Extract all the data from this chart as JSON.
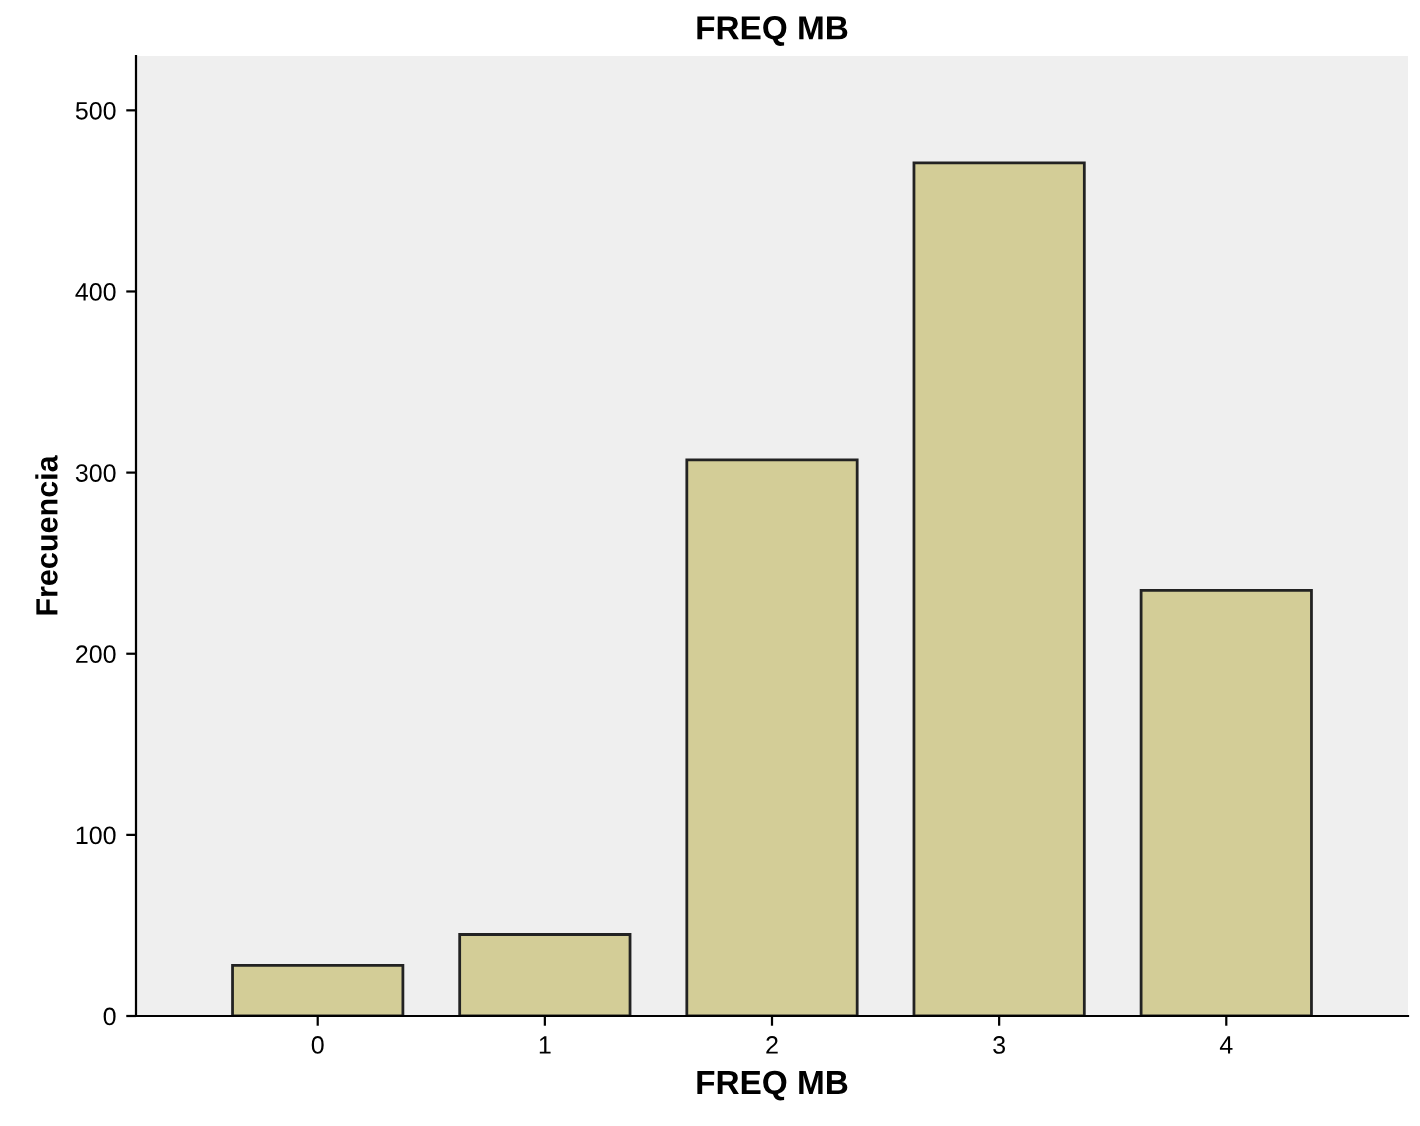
{
  "chart_data": {
    "type": "bar",
    "title": "FREQ MB",
    "xlabel": "FREQ MB",
    "ylabel": "Frecuencia",
    "categories": [
      "0",
      "1",
      "2",
      "3",
      "4"
    ],
    "values": [
      28,
      45,
      307,
      471,
      235
    ],
    "color": "#d3cd97",
    "ylim": [
      0,
      530
    ],
    "yticks": [
      0,
      100,
      200,
      300,
      400,
      500
    ],
    "grid": false,
    "legend": false
  }
}
